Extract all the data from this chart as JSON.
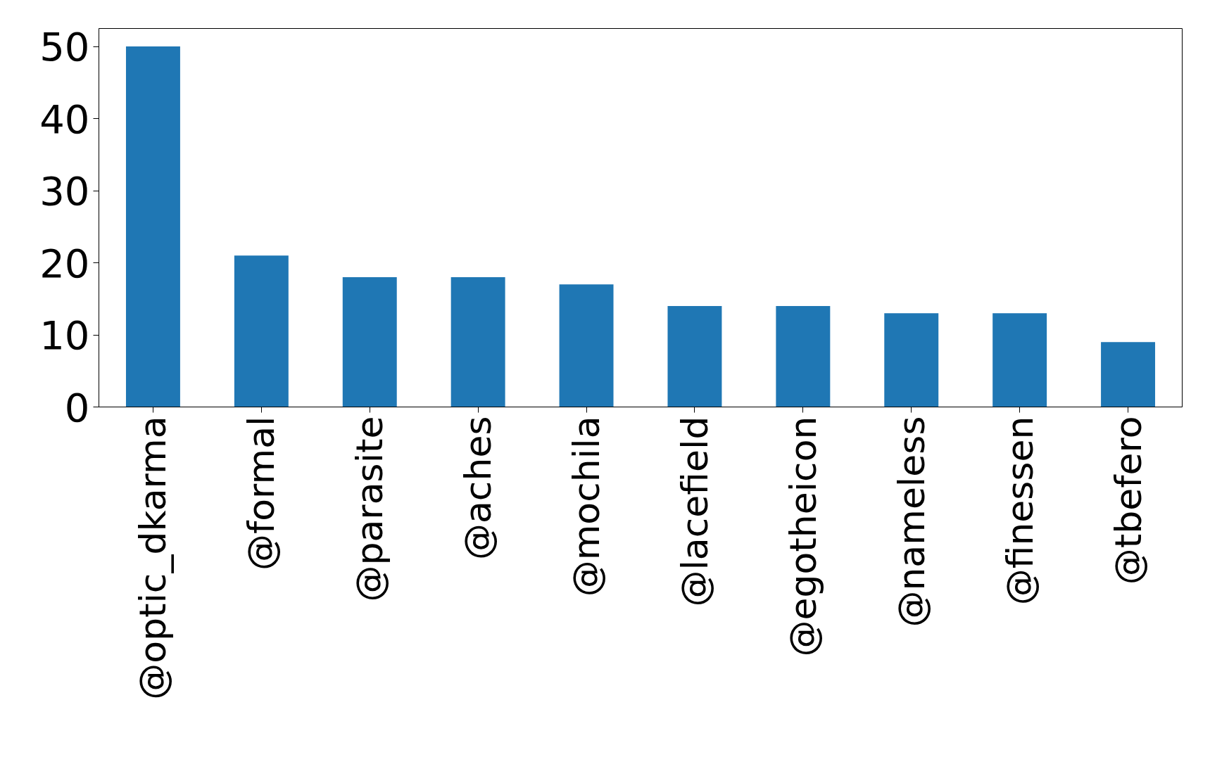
{
  "chart_data": {
    "type": "bar",
    "categories": [
      "@optic_dkarma",
      "@formal",
      "@parasite",
      "@aches",
      "@mochila",
      "@lacefield",
      "@egotheicon",
      "@nameless",
      "@finessen",
      "@tbefero"
    ],
    "values": [
      50,
      21,
      18,
      18,
      17,
      14,
      14,
      13,
      13,
      9
    ],
    "color": "#1f77b4",
    "ylim": [
      0,
      52.5
    ],
    "yticks": [
      0,
      10,
      20,
      30,
      40,
      50
    ],
    "grid": false
  }
}
